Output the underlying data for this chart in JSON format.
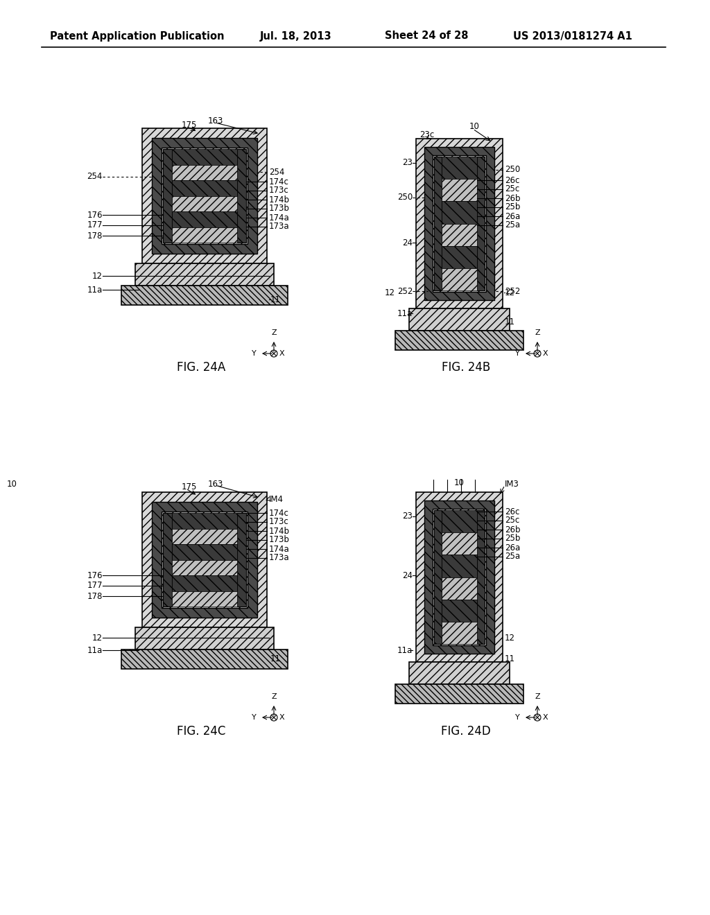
{
  "bg_color": "#ffffff",
  "header_text": "Patent Application Publication",
  "header_date": "Jul. 18, 2013",
  "header_sheet": "Sheet 24 of 28",
  "header_patent": "US 2013/0181274 A1",
  "fig_labels": [
    "FIG. 24A",
    "FIG. 24B",
    "FIG. 24C",
    "FIG. 24D"
  ]
}
